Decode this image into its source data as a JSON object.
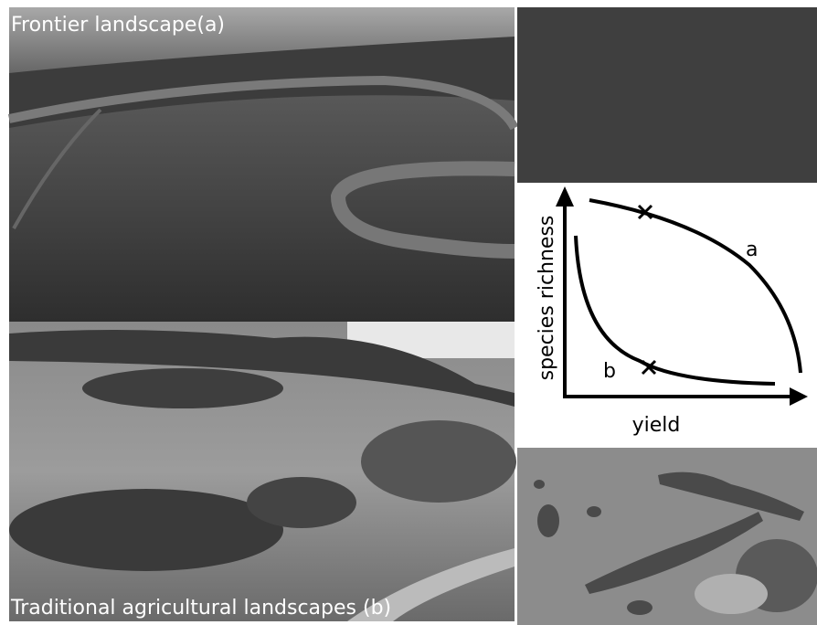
{
  "photos": {
    "frontier": {
      "caption": "Frontier landscape(a)"
    },
    "traditional": {
      "caption": "Traditional agricultural landscapes (b)"
    }
  },
  "diagram": {
    "y_axis_label": "species richness",
    "x_axis_label": "yield",
    "curve_a_label": "a",
    "curve_b_label": "b"
  }
}
